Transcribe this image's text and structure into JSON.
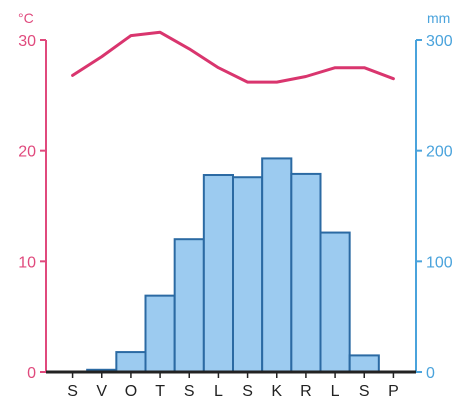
{
  "chart_data": {
    "type": "bar",
    "categories": [
      "S",
      "V",
      "O",
      "T",
      "S",
      "L",
      "S",
      "K",
      "R",
      "L",
      "S",
      "P"
    ],
    "series": [
      {
        "type": "bar",
        "values": [
          0,
          2,
          18,
          69,
          120,
          178,
          176,
          193,
          179,
          126,
          15,
          0
        ],
        "axis": "right",
        "color": "#9ccbf0"
      },
      {
        "type": "line",
        "values": [
          26.8,
          28.5,
          30.4,
          30.7,
          29.2,
          27.5,
          26.2,
          26.2,
          26.7,
          27.5,
          27.5,
          26.5
        ],
        "axis": "left",
        "color": "#d9356e"
      }
    ],
    "left_axis": {
      "unit": "°C",
      "min": 0,
      "max": 30,
      "ticks": [
        "0",
        "10",
        "20",
        "30"
      ],
      "color": "#e04a7d"
    },
    "right_axis": {
      "unit": "mm",
      "min": 0,
      "max": 300,
      "ticks": [
        "0",
        "100",
        "200",
        "300"
      ],
      "color": "#4aa3dc"
    },
    "grid": false
  }
}
